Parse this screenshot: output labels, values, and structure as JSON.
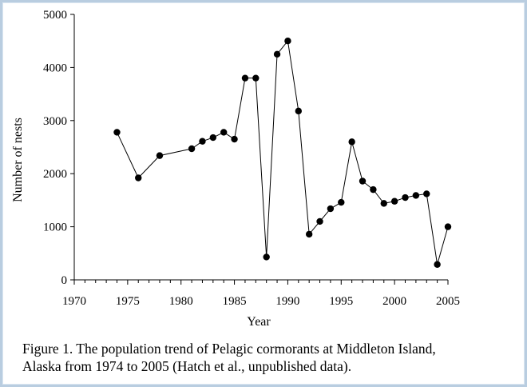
{
  "chart_data": {
    "type": "line",
    "title": "",
    "xlabel": "Year",
    "ylabel": "Number of nests",
    "xlim": [
      1970,
      2005
    ],
    "ylim": [
      0,
      5000
    ],
    "x_ticks": [
      1970,
      1975,
      1980,
      1985,
      1990,
      1995,
      2000,
      2005
    ],
    "y_ticks": [
      0,
      1000,
      2000,
      3000,
      4000,
      5000
    ],
    "grid": false,
    "legend": "none",
    "series_color": "#000000",
    "points": [
      {
        "x": 1974,
        "y": 2780
      },
      {
        "x": 1976,
        "y": 1920
      },
      {
        "x": 1978,
        "y": 2340
      },
      {
        "x": 1981,
        "y": 2470
      },
      {
        "x": 1982,
        "y": 2610
      },
      {
        "x": 1983,
        "y": 2680
      },
      {
        "x": 1984,
        "y": 2780
      },
      {
        "x": 1985,
        "y": 2650
      },
      {
        "x": 1986,
        "y": 3800
      },
      {
        "x": 1987,
        "y": 3800
      },
      {
        "x": 1988,
        "y": 430
      },
      {
        "x": 1989,
        "y": 4250
      },
      {
        "x": 1990,
        "y": 4500
      },
      {
        "x": 1991,
        "y": 3180
      },
      {
        "x": 1992,
        "y": 860
      },
      {
        "x": 1993,
        "y": 1100
      },
      {
        "x": 1994,
        "y": 1340
      },
      {
        "x": 1995,
        "y": 1460
      },
      {
        "x": 1996,
        "y": 2600
      },
      {
        "x": 1997,
        "y": 1860
      },
      {
        "x": 1998,
        "y": 1700
      },
      {
        "x": 1999,
        "y": 1440
      },
      {
        "x": 2000,
        "y": 1480
      },
      {
        "x": 2001,
        "y": 1550
      },
      {
        "x": 2002,
        "y": 1590
      },
      {
        "x": 2003,
        "y": 1620
      },
      {
        "x": 2004,
        "y": 290
      },
      {
        "x": 2005,
        "y": 1000
      }
    ]
  },
  "caption": {
    "line1": "Figure 1.  The population trend of Pelagic cormorants at Middleton Island,",
    "line2": "Alaska from 1974 to 2005 (Hatch et al., unpublished data)."
  },
  "colors": {
    "frame_border": "#b9cde0"
  }
}
